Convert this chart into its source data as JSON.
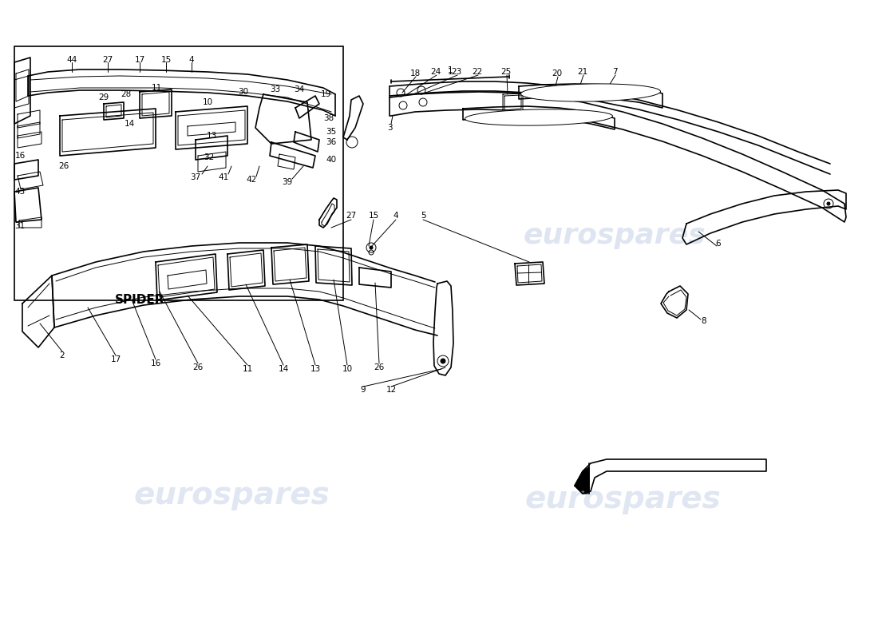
{
  "bg_color": "#ffffff",
  "line_color": "#000000",
  "watermark_color": "#c8d4e8",
  "watermark_text": "eurospares",
  "fig_width": 11.0,
  "fig_height": 8.0,
  "dpi": 100
}
